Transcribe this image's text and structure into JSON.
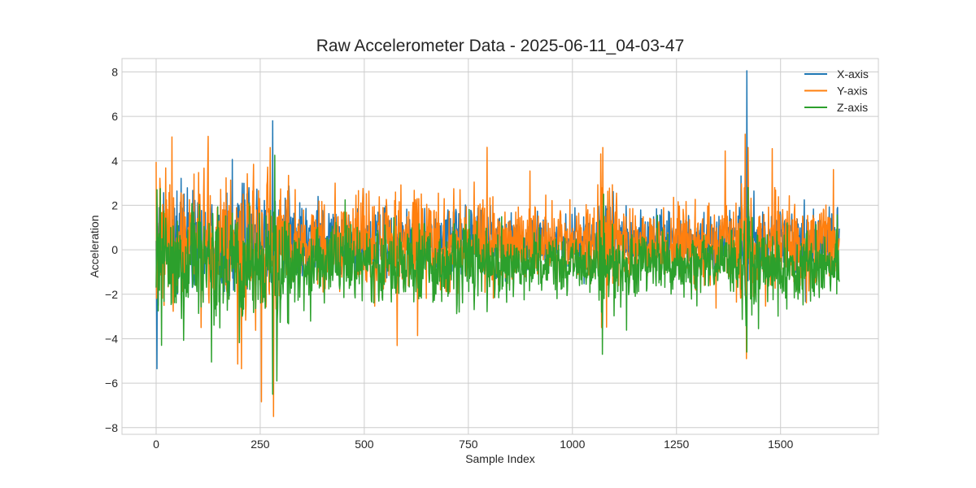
{
  "chart_data": {
    "type": "line",
    "title": "Raw Accelerometer Data - 2025-06-11_04-03-47",
    "xlabel": "Sample Index",
    "ylabel": "Acceleration",
    "xlim": [
      -82,
      1735
    ],
    "ylim": [
      -8.3,
      8.6
    ],
    "xticks": [
      0,
      250,
      500,
      750,
      1000,
      1250,
      1500
    ],
    "yticks": [
      -8,
      -6,
      -4,
      -2,
      0,
      2,
      4,
      6,
      8
    ],
    "xtick_labels": [
      "0",
      "250",
      "500",
      "750",
      "1000",
      "1250",
      "1500"
    ],
    "ytick_labels": [
      "−8",
      "−6",
      "−4",
      "−2",
      "0",
      "2",
      "4",
      "6",
      "8"
    ],
    "grid": true,
    "legend_position": "top-right",
    "num_points": 1642,
    "series": [
      {
        "name": "X-axis",
        "color": "#1f77b4",
        "approx_mean": 0.4,
        "approx_noise": 0.75,
        "key_points": [
          [
            0,
            0.4
          ],
          [
            2,
            -5.35
          ],
          [
            5,
            -2.5
          ],
          [
            10,
            0.5
          ],
          [
            170,
            2.55
          ],
          [
            280,
            5.8
          ],
          [
            283,
            -1.5
          ],
          [
            700,
            1.4
          ],
          [
            900,
            1.2
          ],
          [
            1260,
            1.3
          ],
          [
            1380,
            1.4
          ],
          [
            1419,
            8.05
          ],
          [
            1421,
            -1.0
          ],
          [
            1640,
            0.4
          ]
        ]
      },
      {
        "name": "Y-axis",
        "color": "#ff7f0e",
        "approx_mean": 0.3,
        "approx_noise": 1.05,
        "key_points": [
          [
            0,
            3.95
          ],
          [
            3,
            1.2
          ],
          [
            10,
            2.7
          ],
          [
            125,
            5.1
          ],
          [
            128,
            1.0
          ],
          [
            205,
            -5.35
          ],
          [
            208,
            0.5
          ],
          [
            274,
            4.6
          ],
          [
            277,
            1.5
          ],
          [
            282,
            -7.5
          ],
          [
            285,
            0.0
          ],
          [
            430,
            3.0
          ],
          [
            1073,
            4.6
          ],
          [
            1076,
            0.5
          ],
          [
            1415,
            5.2
          ],
          [
            1418,
            -4.9
          ],
          [
            1422,
            4.6
          ],
          [
            1425,
            0.5
          ],
          [
            1480,
            4.55
          ],
          [
            1483,
            0.5
          ],
          [
            1640,
            0.2
          ]
        ]
      },
      {
        "name": "Z-axis",
        "color": "#2ca02c",
        "approx_mean": -0.7,
        "approx_noise": 0.85,
        "key_points": [
          [
            0,
            -1.7
          ],
          [
            2,
            2.7
          ],
          [
            10,
            2.75
          ],
          [
            13,
            -4.3
          ],
          [
            133,
            4.15
          ],
          [
            133,
            -5.05
          ],
          [
            280,
            -6.5
          ],
          [
            285,
            4.25
          ],
          [
            290,
            -5.9
          ],
          [
            1072,
            -4.7
          ],
          [
            1075,
            2.5
          ],
          [
            1419,
            -4.6
          ],
          [
            1422,
            2.8
          ],
          [
            1640,
            -1.3
          ]
        ]
      }
    ]
  }
}
